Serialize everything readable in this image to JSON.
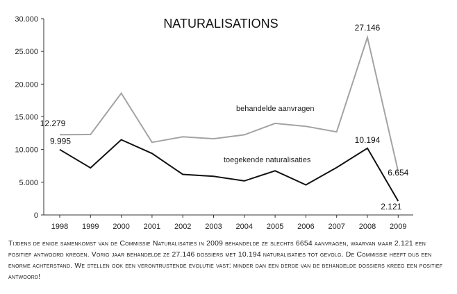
{
  "chart_data": {
    "type": "line",
    "title": "NATURALISATIONS",
    "categories": [
      "1998",
      "1999",
      "2000",
      "2001",
      "2002",
      "2003",
      "2004",
      "2005",
      "2006",
      "2007",
      "2008",
      "2009"
    ],
    "series": [
      {
        "name": "behandelde aanvragen",
        "color": "#a3a3a3",
        "values": [
          12279,
          12300,
          18600,
          11100,
          11950,
          11650,
          12250,
          14000,
          13550,
          12700,
          27146,
          6654
        ]
      },
      {
        "name": "toegekende naturalisaties",
        "color": "#111111",
        "values": [
          9995,
          7200,
          11500,
          9400,
          6200,
          5900,
          5200,
          6750,
          4600,
          7250,
          10194,
          2121
        ]
      }
    ],
    "yticks": [
      "0",
      "5.000",
      "10.000",
      "15.000",
      "20.000",
      "25.000",
      "30.000"
    ],
    "ylim": [
      0,
      30000
    ],
    "data_labels": [
      {
        "text": "12.279",
        "series": 0,
        "index": 0
      },
      {
        "text": "9.995",
        "series": 1,
        "index": 0
      },
      {
        "text": "27.146",
        "series": 0,
        "index": 10
      },
      {
        "text": "10.194",
        "series": 1,
        "index": 10
      },
      {
        "text": "6.654",
        "series": 0,
        "index": 11
      },
      {
        "text": "2.121",
        "series": 1,
        "index": 11
      }
    ],
    "grid": false
  },
  "caption": "Tijdens de enige samenkomst van de Commissie Naturalisaties in 2009 behandelde ze slechts 6654 aanvragen, waarvan maar 2.121 een positief antwoord kregen. Vorig jaar behandelde ze  27.146 dossiers met 10.194 naturalisaties tot gevolg. De Commissie heeft dus een enorme achterstand. We stellen ook een verontrustende evolutie vast: minder dan een derde van de behandelde dossiers kreeg een positief antwoord!"
}
